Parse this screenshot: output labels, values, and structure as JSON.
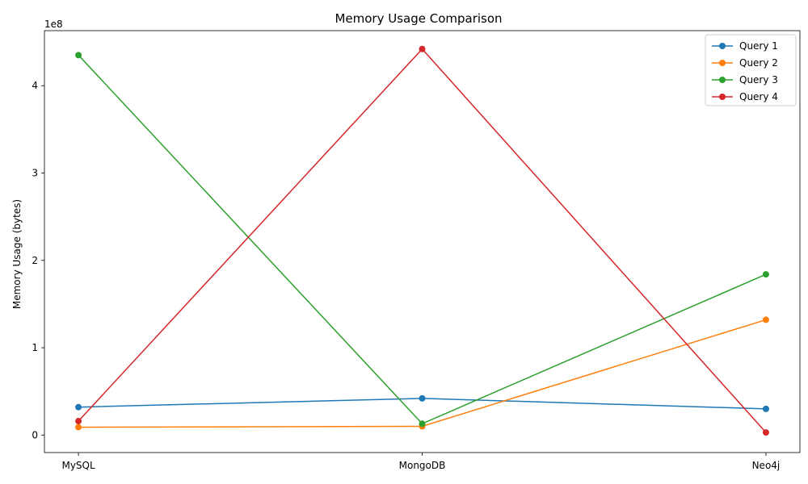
{
  "chart_data": {
    "type": "line",
    "title": "Memory Usage Comparison",
    "xlabel": "",
    "ylabel": "Memory Usage (bytes)",
    "y_offset_label": "1e8",
    "categories": [
      "MySQL",
      "MongoDB",
      "Neo4j"
    ],
    "ylim": [
      -20000000,
      463000000
    ],
    "yticks": [
      0,
      100000000,
      200000000,
      300000000,
      400000000
    ],
    "ytick_labels": [
      "0",
      "1",
      "2",
      "3",
      "4"
    ],
    "grid": false,
    "legend_position": "top-right",
    "series": [
      {
        "name": "Query 1",
        "color": "#1f77b4",
        "values": [
          32000000,
          42000000,
          30000000
        ]
      },
      {
        "name": "Query 2",
        "color": "#ff7f0e",
        "values": [
          9000000,
          10000000,
          132000000
        ]
      },
      {
        "name": "Query 3",
        "color": "#2ca02c",
        "values": [
          435000000,
          13000000,
          184000000
        ]
      },
      {
        "name": "Query 4",
        "color": "#d62728",
        "values": [
          16000000,
          442000000,
          3000000
        ]
      }
    ]
  }
}
